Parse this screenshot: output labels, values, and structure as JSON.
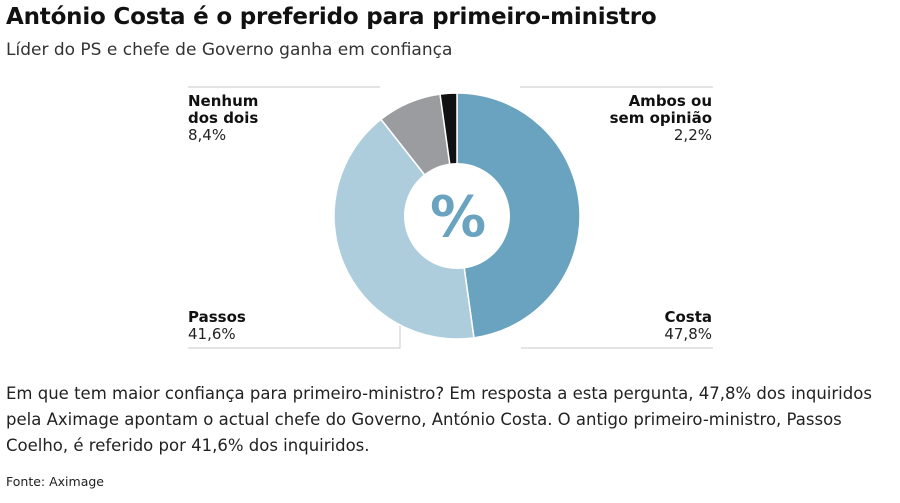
{
  "header": {
    "title": "António Costa é o preferido para primeiro-ministro",
    "subtitle": "Líder do PS e chefe de Governo ganha em confiança"
  },
  "chart_data": {
    "type": "pie",
    "center_label": "%",
    "slices": [
      {
        "name_lines": [
          "Costa"
        ],
        "value": 47.8,
        "value_label": "47,8%",
        "color": "#6aa3c0"
      },
      {
        "name_lines": [
          "Passos"
        ],
        "value": 41.6,
        "value_label": "41,6%",
        "color": "#adcddd"
      },
      {
        "name_lines": [
          "Nenhum",
          "dos dois"
        ],
        "value": 8.4,
        "value_label": "8,4%",
        "color": "#9a9c9f"
      },
      {
        "name_lines": [
          "Ambos ou",
          "sem opinião"
        ],
        "value": 2.2,
        "value_label": "2,2%",
        "color": "#111111"
      }
    ]
  },
  "body": {
    "text": "Em que tem maior confiança para primeiro-ministro? Em resposta a esta pergunta, 47,8% dos inquiridos pela Aximage apontam o actual chefe do Governo, António Costa. O antigo primeiro-ministro, Passos Coelho, é referido por 41,6% dos inquiridos."
  },
  "footer": {
    "source": "Fonte: Aximage"
  }
}
